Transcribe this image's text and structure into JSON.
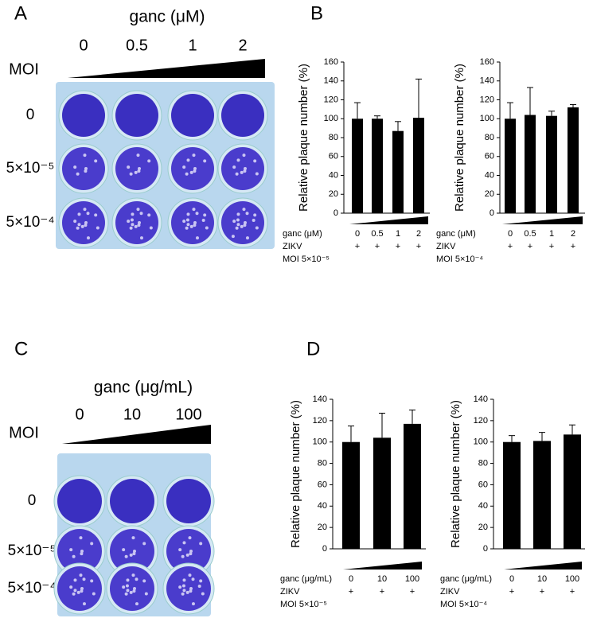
{
  "panel_labels": [
    "A",
    "B",
    "C",
    "D"
  ],
  "plates": [
    {
      "treatment": "ganc (μM)",
      "doses": [
        "0",
        "0.5",
        "1",
        "2"
      ],
      "moi_label": "MOI",
      "rows": [
        "0",
        "5×10⁻⁵",
        "5×10⁻⁴"
      ]
    },
    {
      "treatment": "ganc (μg/mL)",
      "doses": [
        "0",
        "10",
        "100"
      ],
      "moi_label": "MOI",
      "rows": [
        "0",
        "5×10⁻⁵",
        "5×10⁻⁴"
      ]
    }
  ],
  "chart_data": [
    {
      "type": "bar",
      "ylabel": "Relative plaque number (%)",
      "categories": [
        "0",
        "0.5",
        "1",
        "2"
      ],
      "values": [
        100,
        100,
        87,
        101
      ],
      "errors": [
        17,
        3,
        10,
        41
      ],
      "color": "#000000",
      "ylim": [
        0,
        160
      ],
      "yticks": [
        0,
        20,
        40,
        60,
        80,
        100,
        120,
        140,
        160
      ],
      "treatment_label": "ganc (μM)",
      "virus_label": "ZIKV",
      "virus_marks": [
        "+",
        "+",
        "+",
        "+"
      ],
      "moi": "MOI 5×10⁻⁵"
    },
    {
      "type": "bar",
      "ylabel": "Relative plaque number (%)",
      "categories": [
        "0",
        "0.5",
        "1",
        "2"
      ],
      "values": [
        100,
        104,
        103,
        112
      ],
      "errors": [
        17,
        29,
        5,
        3
      ],
      "color": "#000000",
      "ylim": [
        0,
        160
      ],
      "yticks": [
        0,
        20,
        40,
        60,
        80,
        100,
        120,
        140,
        160
      ],
      "treatment_label": "ganc (μM)",
      "virus_label": "ZIKV",
      "virus_marks": [
        "+",
        "+",
        "+",
        "+"
      ],
      "moi": "MOI 5×10⁻⁴"
    },
    {
      "type": "bar",
      "ylabel": "Relative plaque number (%)",
      "categories": [
        "0",
        "10",
        "100"
      ],
      "values": [
        100,
        104,
        117
      ],
      "errors": [
        15,
        23,
        13
      ],
      "color": "#000000",
      "ylim": [
        0,
        140
      ],
      "yticks": [
        0,
        20,
        40,
        60,
        80,
        100,
        120,
        140
      ],
      "treatment_label": "ganc (μg/mL)",
      "virus_label": "ZIKV",
      "virus_marks": [
        "+",
        "+",
        "+"
      ],
      "moi": "MOI 5×10⁻⁵"
    },
    {
      "type": "bar",
      "ylabel": "Relative plaque number (%)",
      "categories": [
        "0",
        "10",
        "100"
      ],
      "values": [
        100,
        101,
        107
      ],
      "errors": [
        6,
        8,
        9
      ],
      "color": "#000000",
      "ylim": [
        0,
        140
      ],
      "yticks": [
        0,
        20,
        40,
        60,
        80,
        100,
        120,
        140
      ],
      "treatment_label": "ganc (μg/mL)",
      "virus_label": "ZIKV",
      "virus_marks": [
        "+",
        "+",
        "+"
      ],
      "moi": "MOI 5×10⁻⁴"
    }
  ]
}
